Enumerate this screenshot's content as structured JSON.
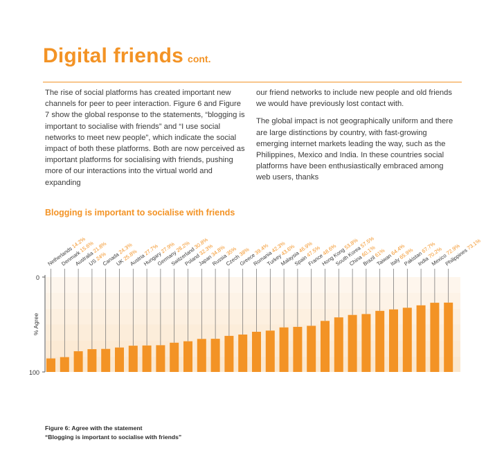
{
  "page": {
    "title": "Digital friends",
    "title_suffix": "cont.",
    "col1": [
      "The rise of social platforms has created important new channels for peer to peer interaction. Figure 6 and Figure 7 show the global response to the statements, “blogging is important to socialise with friends” and “I use social networks to meet new people”, which indicate the social impact of both these platforms. Both are now perceived as important platforms for socialising with friends, pushing more of our interactions into the virtual world and expanding"
    ],
    "col2": [
      "our friend networks to include new people and old friends we would have previously lost contact with.",
      "The global impact is not geographically uniform and there are large distinctions by country, with fast-growing emerging internet markets leading the way, such as the Philippines, Mexico and India. In these countries social platforms have been enthusiastically embraced among web users, thanks"
    ],
    "chart_title": "Blogging is important to socialise with friends",
    "caption_line1": "Figure 6: Agree with the statement",
    "caption_line2": "“Blogging is important to socialise with friends”"
  },
  "colors": {
    "accent": "#f39325",
    "bar": "#f39325",
    "band": "#fbe6cb",
    "text": "#3a3a3a"
  },
  "chart_data": {
    "type": "bar",
    "title": "Blogging is important to socialise with friends",
    "ylabel": "% Agree",
    "ylim": [
      0,
      100
    ],
    "yticks": [
      "0",
      "100"
    ],
    "categories": [
      "Netherlands",
      "Denmark",
      "Australia",
      "US",
      "Canada",
      "UK",
      "Austria",
      "Hungary",
      "Germany",
      "Switzerland",
      "Poland",
      "Japan",
      "Russia",
      "Czech",
      "Greece",
      "Romania",
      "Turkey",
      "Malaysia",
      "Spain",
      "France",
      "Hong Kong",
      "South Korea",
      "China",
      "Brazil",
      "Taiwan",
      "Italy",
      "Pakistan",
      "India",
      "Mexico",
      "Philippines"
    ],
    "values": [
      14.2,
      15.6,
      21.8,
      24,
      24.3,
      25.8,
      27.7,
      27.9,
      28.2,
      30.8,
      32.3,
      34.8,
      35,
      38,
      39.4,
      42.3,
      43.6,
      46.9,
      47.5,
      48.6,
      53.8,
      57.5,
      60.1,
      61,
      64.4,
      65.9,
      67.7,
      70.2,
      72.9,
      73.1
    ],
    "labels": [
      "Netherlands 14.2%",
      "Denmark 15.6%",
      "Australia 21.8%",
      "US 24%",
      "Canada 24.3%",
      "UK 25.8%",
      "Austria 27.7%",
      "Hungary 27.9%",
      "Germany 28.2%",
      "Switzerland 30.8%",
      "Poland 32.3%",
      "Japan 34.8%",
      "Russia 35%",
      "Czech 38%",
      "Greece 39.4%",
      "Romania 42.3%",
      "Turkey 43.6%",
      "Malaysia 46.9%",
      "Spain 47.5%",
      "France 48.6%",
      "Hong Kong 53.8%",
      "South Korea 57.5%",
      "China 60.1%",
      "Brazil 61%",
      "Taiwan 64.4%",
      "Italy 65.9%",
      "Pakistan 67.7%",
      "India 70.2%",
      "Mexico 72.9%",
      "Philippines 73.1%"
    ]
  }
}
